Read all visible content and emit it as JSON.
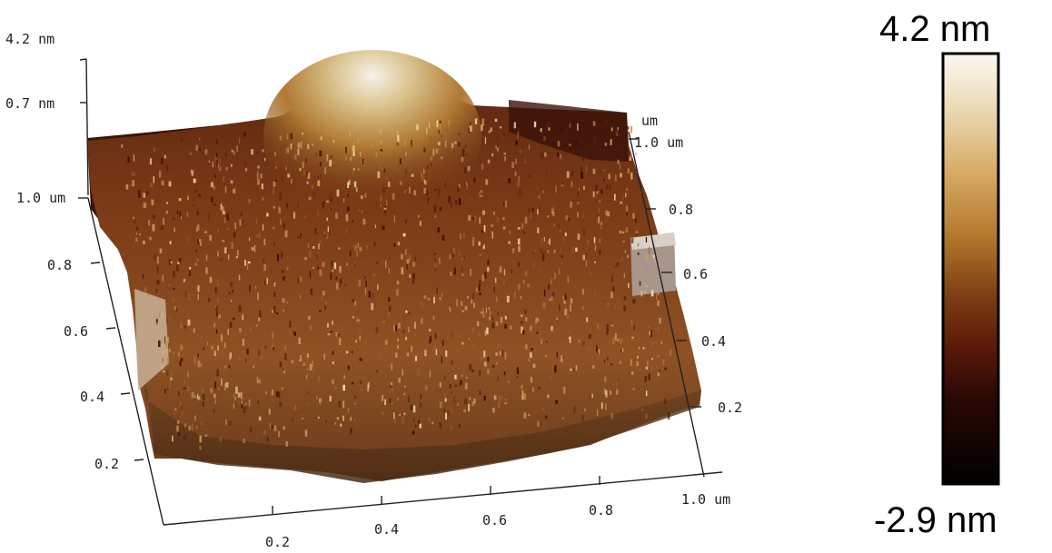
{
  "z_axis": {
    "top_label": "4.2 nm",
    "mid_label": "0.7 nm"
  },
  "left_axis": {
    "end_label": "1.0 um",
    "ticks": [
      "0.8",
      "0.6",
      "0.4",
      "0.2"
    ]
  },
  "bottom_axis": {
    "end_label": "1.0 um",
    "ticks": [
      "0.2",
      "0.4",
      "0.6",
      "0.8"
    ]
  },
  "right_axis": {
    "unit": "um",
    "end_label": "1.0 um",
    "ticks": [
      "0.8",
      "0.6",
      "0.4",
      "0.2"
    ]
  },
  "color_scale": {
    "max_label": "4.2 nm",
    "min_label": "-2.9 nm",
    "colors": [
      "#fbf8f2",
      "#e9d2a2",
      "#cf9650",
      "#a86822",
      "#7a3d12",
      "#4c1606",
      "#1a0402",
      "#000000"
    ]
  }
}
